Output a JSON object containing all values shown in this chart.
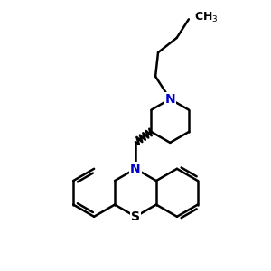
{
  "background_color": "#ffffff",
  "bond_color": "#000000",
  "N_color": "#0000cd",
  "line_width": 1.8,
  "fig_width": 3.0,
  "fig_height": 3.0,
  "dpi": 100,
  "xlim": [
    0,
    10
  ],
  "ylim": [
    0,
    10
  ]
}
